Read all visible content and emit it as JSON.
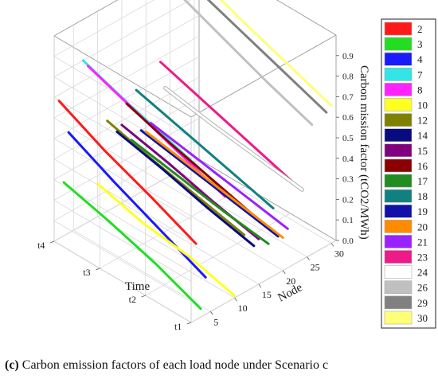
{
  "caption": {
    "label": "(c)",
    "text": " Carbon emission factors of each load node under Scenario c"
  },
  "chart_data": {
    "type": "line3d",
    "zlabel": "Carbon mission factor (tCO2/MWh)",
    "xlabel": "Node",
    "ylabel": "Time",
    "zlim": [
      0,
      0.9
    ],
    "z_ticks": [
      "0.0",
      "0.1",
      "0.2",
      "0.3",
      "0.4",
      "0.5",
      "0.6",
      "0.7",
      "0.8",
      "0.9"
    ],
    "x_ticks": [
      "5",
      "10",
      "15",
      "20",
      "25",
      "30"
    ],
    "y_ticks": [
      "t1",
      "t2",
      "t3",
      "t4"
    ],
    "legend_position": "right",
    "series": [
      {
        "name": "2",
        "color": "#ff1a1a",
        "x": 2,
        "values": [
          0.37,
          0.47,
          0.56,
          0.67
        ]
      },
      {
        "name": "3",
        "color": "#22dd22",
        "x": 3,
        "values": [
          0.04,
          0.13,
          0.2,
          0.26
        ]
      },
      {
        "name": "4",
        "color": "#1a1aff",
        "x": 4,
        "values": [
          0.18,
          0.28,
          0.38,
          0.49
        ]
      },
      {
        "name": "7",
        "color": "#33e5e5",
        "x": 7,
        "values": [
          0.58,
          0.65,
          0.72,
          0.8
        ]
      },
      {
        "name": "8",
        "color": "#ff22ff",
        "x": 8,
        "values": [
          0.52,
          0.6,
          0.68,
          0.76
        ]
      },
      {
        "name": "10",
        "color": "#ffff22",
        "x": 10,
        "values": [
          0.01,
          0.07,
          0.1,
          0.16
        ]
      },
      {
        "name": "12",
        "color": "#808000",
        "x": 12,
        "values": [
          0.28,
          0.33,
          0.38,
          0.44
        ]
      },
      {
        "name": "14",
        "color": "#0a0a80",
        "x": 14,
        "values": [
          0.2,
          0.25,
          0.31,
          0.36
        ]
      },
      {
        "name": "15",
        "color": "#800080",
        "x": 15,
        "values": [
          0.22,
          0.27,
          0.33,
          0.38
        ]
      },
      {
        "name": "16",
        "color": "#8b0000",
        "x": 16,
        "values": [
          0.28,
          0.34,
          0.4,
          0.47
        ]
      },
      {
        "name": "17",
        "color": "#228b22",
        "x": 17,
        "values": [
          0.17,
          0.2,
          0.24,
          0.28
        ]
      },
      {
        "name": "18",
        "color": "#118080",
        "x": 18,
        "values": [
          0.33,
          0.39,
          0.45,
          0.51
        ]
      },
      {
        "name": "19",
        "color": "#1111aa",
        "x": 19,
        "values": [
          0.18,
          0.22,
          0.26,
          0.3
        ]
      },
      {
        "name": "20",
        "color": "#ff8c00",
        "x": 20,
        "values": [
          0.16,
          0.2,
          0.24,
          0.28
        ]
      },
      {
        "name": "21",
        "color": "#9922ff",
        "x": 21,
        "values": [
          0.19,
          0.23,
          0.27,
          0.31
        ]
      },
      {
        "name": "23",
        "color": "#ee1a88",
        "x": 23,
        "values": [
          0.37,
          0.44,
          0.51,
          0.58
        ]
      },
      {
        "name": "24",
        "color": "#ffffff",
        "x": 24,
        "values": [
          0.34,
          0.37,
          0.4,
          0.44
        ]
      },
      {
        "name": "26",
        "color": "#c0c0c0",
        "x": 26,
        "values": [
          0.63,
          0.71,
          0.8,
          0.89
        ]
      },
      {
        "name": "29",
        "color": "#808080",
        "x": 29,
        "values": [
          0.65,
          0.73,
          0.81,
          0.89
        ]
      },
      {
        "name": "30",
        "color": "#ffff77",
        "x": 30,
        "values": [
          0.67,
          0.75,
          0.83,
          0.92
        ]
      }
    ]
  }
}
